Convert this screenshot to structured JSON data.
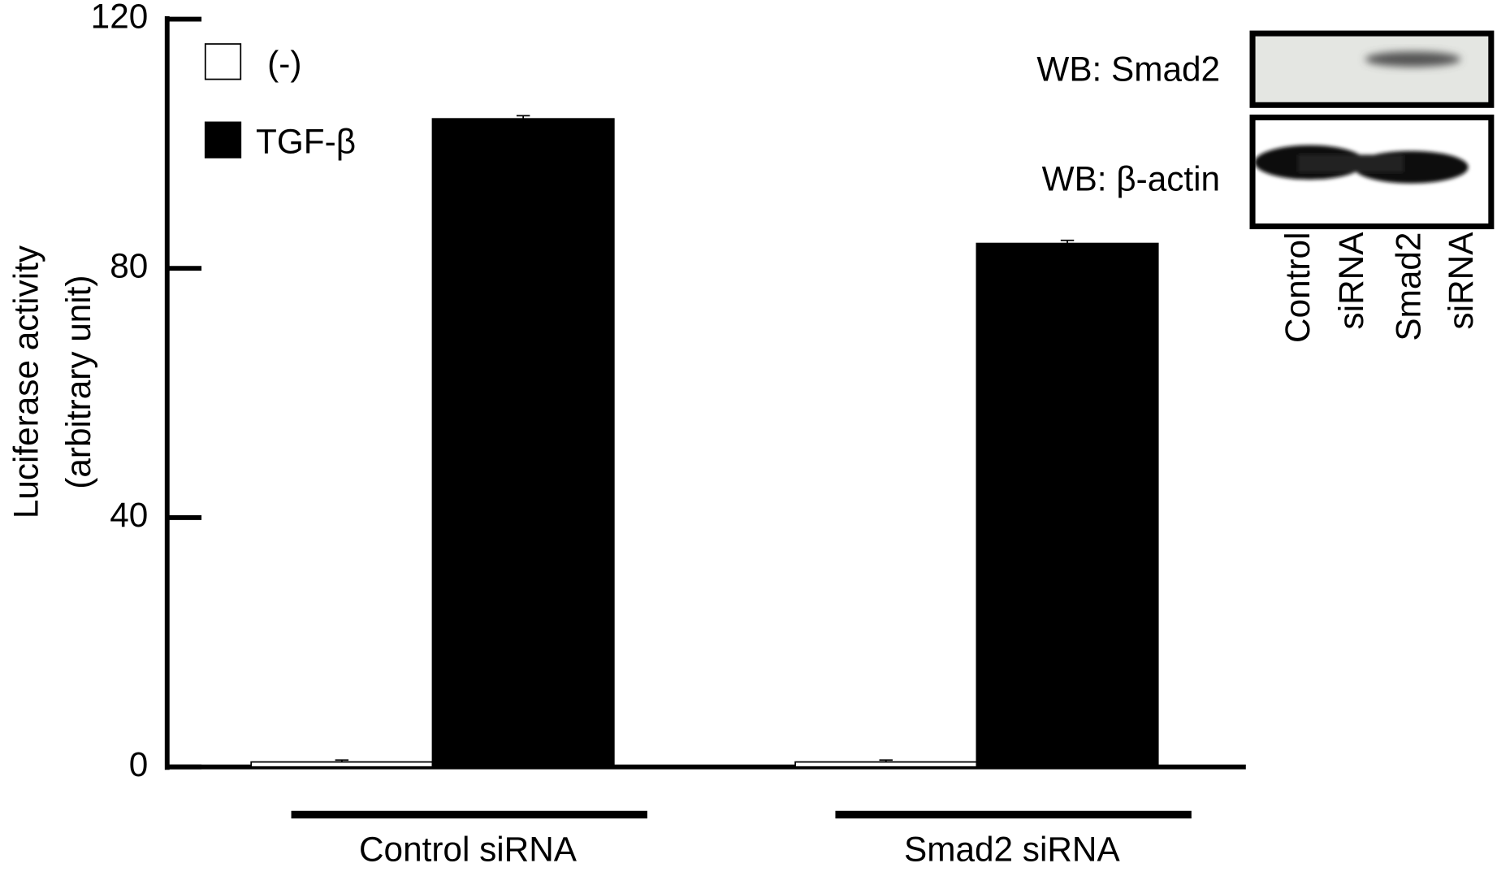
{
  "chart_data": {
    "type": "bar",
    "ylabel_lines": [
      "Luciferase activity",
      "(arbitrary unit)"
    ],
    "categories": [
      "Control  siRNA",
      "Smad2 siRNA"
    ],
    "series": [
      {
        "name": "(-)",
        "color": "#ffffff",
        "values": [
          0.8,
          0.8
        ],
        "errors": [
          0.3,
          0.3
        ]
      },
      {
        "name": "TGF-β",
        "color": "#000000",
        "values": [
          104,
          84
        ],
        "errors": [
          0.5,
          0.5
        ]
      }
    ],
    "ylim": [
      0,
      120
    ],
    "yticks": [
      0,
      40,
      80,
      120
    ]
  },
  "inset": {
    "rows": [
      "WB: Smad2",
      "WB: β-actin"
    ],
    "lanes": [
      [
        "Control",
        "siRNA"
      ],
      [
        "Smad2",
        "siRNA"
      ]
    ]
  }
}
